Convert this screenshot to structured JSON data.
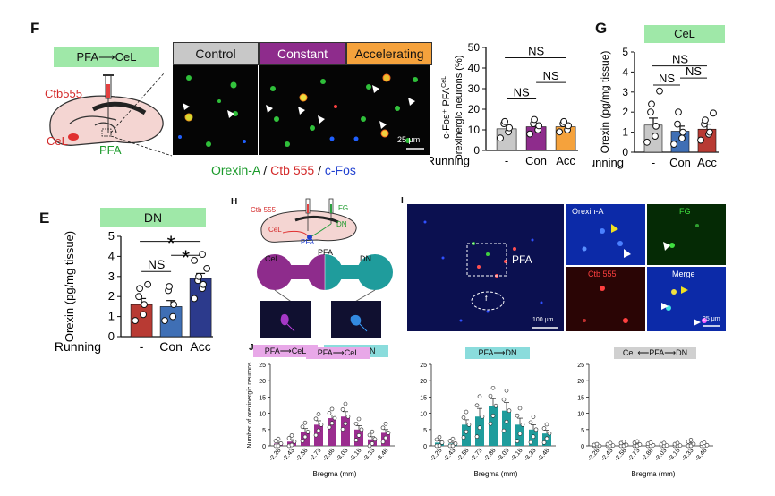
{
  "panels": {
    "F": {
      "letter": "F",
      "route_tag": "PFA⟶CeL",
      "tracer_label": "Ctb555",
      "region_cel": "CeL",
      "region_pfa": "PFA",
      "group_headers": [
        "Control",
        "Constant",
        "Accelerating"
      ],
      "group_colors": [
        "#c8c8c8",
        "#8e2c8c",
        "#f5a23c"
      ],
      "scale_bar": "25 μm",
      "legend_orexin": "Orexin-A",
      "legend_ctb": "Ctb 555",
      "legend_cfos": "c-Fos",
      "legend_sep": " / "
    },
    "G": {
      "letter": "G",
      "region_tag": "CeL"
    },
    "E": {
      "letter": "E",
      "region_tag": "DN"
    },
    "H": {
      "letter": "H",
      "labels": {
        "ctb": "Ctb 555",
        "fg": "FG",
        "dn": "DN",
        "cel": "CeL",
        "pfa": "PFA"
      },
      "schematic": {
        "cel": "CeL",
        "pfa": "PFA",
        "dn": "DN"
      },
      "tag_cel": "PFA⟶CeL",
      "tag_dn": "PFA⟶DN"
    },
    "I": {
      "letter": "I",
      "pfa_label": "PFA",
      "fornix_label": "f",
      "scale_main": "100 μm",
      "scale_inset": "25 μm",
      "insets": [
        "Orexin-A",
        "FG",
        "Ctb 555",
        "Merge"
      ]
    },
    "J": {
      "letter": "J",
      "tags": [
        "PFA⟶CeL",
        "PFA⟶DN",
        "CeL⟵PFA⟶DN"
      ]
    }
  },
  "chart_data": [
    {
      "id": "F",
      "type": "bar",
      "ylabel_line1": "c-Fos⁺ PFA",
      "ylabel_sup": "CeL",
      "ylabel_line2": "orexinergic neurons (%)",
      "xprefix": "Running",
      "categories": [
        "-",
        "Con",
        "Acc"
      ],
      "values": [
        10.5,
        11.5,
        11.5
      ],
      "errors": [
        1.5,
        1.5,
        1.0
      ],
      "colors": [
        "#c8c8c8",
        "#8e2c8c",
        "#f5a23c"
      ],
      "points": [
        [
          6,
          9,
          11,
          13,
          14
        ],
        [
          8,
          10,
          12,
          13,
          15
        ],
        [
          9,
          10,
          12,
          13,
          14
        ]
      ],
      "ylim": [
        0,
        50
      ],
      "yticks": [
        0,
        10,
        20,
        30,
        40,
        50
      ],
      "sig": [
        {
          "from": 0,
          "to": 2,
          "label": "NS",
          "y": 45
        },
        {
          "from": 0,
          "to": 1,
          "label": "NS",
          "y": 25
        },
        {
          "from": 1,
          "to": 2,
          "label": "NS",
          "y": 33
        }
      ]
    },
    {
      "id": "G",
      "type": "bar",
      "ylabel": "Orexin (pg/mg tissue)",
      "xprefix": "Running",
      "categories": [
        "-",
        "Con",
        "Acc"
      ],
      "values": [
        1.35,
        1.05,
        1.15
      ],
      "errors": [
        0.35,
        0.25,
        0.25
      ],
      "colors": [
        "#c8c8c8",
        "#3f6fb5",
        "#b83a33"
      ],
      "points": [
        [
          0.5,
          0.8,
          1.3,
          2.0,
          2.4,
          3.05
        ],
        [
          0.4,
          0.7,
          1.0,
          1.4,
          2.0
        ],
        [
          0.6,
          0.9,
          1.0,
          1.4,
          1.6,
          1.95
        ]
      ],
      "ylim": [
        0,
        5
      ],
      "yticks": [
        0,
        1,
        2,
        3,
        4,
        5
      ],
      "sig": [
        {
          "from": 0,
          "to": 2,
          "label": "NS",
          "y": 4.3
        },
        {
          "from": 0,
          "to": 1,
          "label": "NS",
          "y": 3.35
        },
        {
          "from": 1,
          "to": 2,
          "label": "NS",
          "y": 3.7
        }
      ]
    },
    {
      "id": "E",
      "type": "bar",
      "ylabel": "Orexin (pg/mg tissue)",
      "xprefix": "Running",
      "categories": [
        "-",
        "Con",
        "Acc"
      ],
      "values": [
        1.6,
        1.5,
        2.9
      ],
      "errors": [
        0.3,
        0.3,
        0.25
      ],
      "colors": [
        "#b83a33",
        "#3f6fb5",
        "#2c3a8c"
      ],
      "points": [
        [
          0.8,
          1.1,
          1.6,
          2.0,
          2.4,
          2.6
        ],
        [
          0.8,
          1.0,
          1.6,
          2.3,
          2.5
        ],
        [
          1.9,
          2.4,
          2.6,
          2.8,
          3.0,
          3.4,
          3.8,
          4.1
        ]
      ],
      "ylim": [
        0,
        5
      ],
      "yticks": [
        0,
        1,
        2,
        3,
        4,
        5
      ],
      "sig": [
        {
          "from": 0,
          "to": 2,
          "label": "*",
          "y": 4.75
        },
        {
          "from": 0,
          "to": 1,
          "label": "NS",
          "y": 3.25
        },
        {
          "from": 1,
          "to": 2,
          "label": "*",
          "y": 4.05
        }
      ]
    },
    {
      "id": "J1",
      "type": "bar",
      "ylabel": "Number of orexinergic neurons",
      "xlabel": "Bregma (mm)",
      "categories": [
        "-2.28",
        "-2.43",
        "-2.58",
        "-2.73",
        "-2.88",
        "-3.03",
        "-3.18",
        "-3.33",
        "-3.48"
      ],
      "values": [
        0.7,
        1.3,
        4.3,
        6.5,
        8.5,
        9.0,
        5.0,
        2.0,
        4.0
      ],
      "errors": [
        0.4,
        0.6,
        1.0,
        1.2,
        1.0,
        1.5,
        1.2,
        0.8,
        1.0
      ],
      "color": "#9b2d8f",
      "ylim": [
        0,
        25
      ],
      "yticks": [
        0,
        5,
        10,
        15,
        20,
        25
      ]
    },
    {
      "id": "J2",
      "type": "bar",
      "ylabel": "",
      "xlabel": "Bregma (mm)",
      "categories": [
        "-2.28",
        "-2.43",
        "-2.58",
        "-2.73",
        "-2.88",
        "-3.03",
        "-3.18",
        "-3.33",
        "-3.48"
      ],
      "values": [
        1.0,
        0.7,
        6.5,
        9.0,
        12.3,
        10.8,
        6.5,
        5.0,
        3.8
      ],
      "errors": [
        0.5,
        0.4,
        1.5,
        2.5,
        2.2,
        2.5,
        2.0,
        1.5,
        1.0
      ],
      "color": "#1f9c9c",
      "ylim": [
        0,
        25
      ],
      "yticks": [
        0,
        5,
        10,
        15,
        20,
        25
      ]
    },
    {
      "id": "J3",
      "type": "bar",
      "ylabel": "",
      "xlabel": "Bregma (mm)",
      "categories": [
        "-2.28",
        "-2.43",
        "-2.58",
        "-2.73",
        "-2.88",
        "-3.03",
        "-3.18",
        "-3.33",
        "-3.48"
      ],
      "values": [
        0.0,
        0.1,
        0.3,
        0.4,
        0.2,
        0.1,
        0.1,
        0.6,
        0.2
      ],
      "errors": [
        0.0,
        0.1,
        0.2,
        0.2,
        0.1,
        0.1,
        0.1,
        0.3,
        0.1
      ],
      "color": "#bdbdbd",
      "ylim": [
        0,
        25
      ],
      "yticks": [
        0,
        5,
        10,
        15,
        20,
        25
      ]
    }
  ]
}
